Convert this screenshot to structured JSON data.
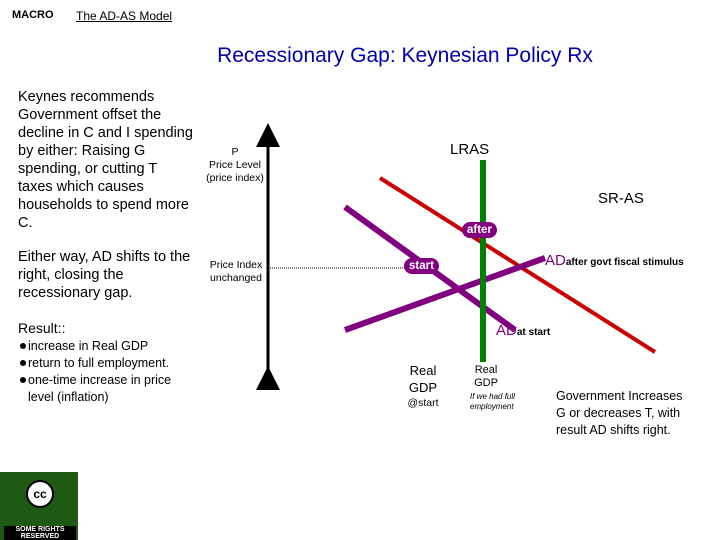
{
  "header": {
    "course": "MACRO",
    "topic": "The AD-AS Model"
  },
  "title": "Recessionary Gap: Keynesian Policy Rx",
  "left_text": {
    "para1": "Keynes recommends Government offset the decline in C and I spending by either: Raising G spending, or cutting T taxes which causes households to spend more C.",
    "para2": "Either way, AD shifts to the right, closing the recessionary gap.",
    "result_heading": "Result::",
    "results": [
      "increase in Real GDP",
      "return to full employment.",
      "one-time increase in price level (inflation)"
    ]
  },
  "graph": {
    "y_axis_label": [
      "P",
      "Price Level",
      "(price index)"
    ],
    "price_index_note": [
      "Price Index",
      "unchanged"
    ],
    "lras_label": "LRAS",
    "sras_label": "SR-AS",
    "after_tag": "after",
    "start_tag": "start",
    "ad_after_main": "AD",
    "ad_after_sub": "after govt fiscal stimulus",
    "ad_start_main": "AD",
    "ad_start_sub": "at start",
    "real_gdp_start": [
      "Real",
      "GDP"
    ],
    "real_gdp_start_note": "@start",
    "real_gdp_full": [
      "Real",
      "GDP"
    ],
    "real_gdp_full_note": [
      "If we had full",
      "employment"
    ],
    "colors": {
      "lras": "#008000",
      "sras": "#cc0000",
      "ad": "#800080",
      "axis": "#000000"
    }
  },
  "note_box": "Government Increases G or decreases T, with result AD shifts right.",
  "logo": {
    "text": "SOME RIGHTS RESERVED",
    "icon": "cc-icon"
  }
}
